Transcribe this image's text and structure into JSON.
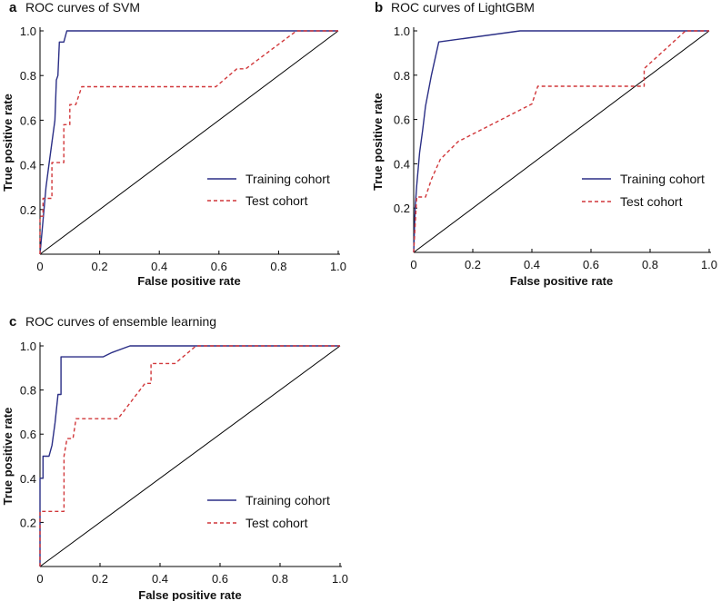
{
  "colors": {
    "training": "#2b2f86",
    "test": "#d1373a",
    "diagonal": "#000000",
    "axis": "#000000"
  },
  "chart_data": [
    {
      "type": "line",
      "panel": "a",
      "title": "ROC curves of SVM",
      "xlabel": "False positive rate",
      "ylabel": "True positive rate",
      "xlim": [
        0,
        1
      ],
      "ylim": [
        0,
        1
      ],
      "x_ticks": [
        "0",
        "0.2",
        "0.4",
        "0.6",
        "0.8",
        "1.0"
      ],
      "y_ticks": [
        "1.0",
        "0.8",
        "0.6",
        "0.4",
        "0.2"
      ],
      "legend_position": "bottom-right",
      "diagonal": true,
      "series": [
        {
          "name": "Training cohort",
          "style": "solid",
          "points": [
            [
              0,
              0
            ],
            [
              0.01,
              0.15
            ],
            [
              0.02,
              0.3
            ],
            [
              0.03,
              0.4
            ],
            [
              0.04,
              0.5
            ],
            [
              0.05,
              0.6
            ],
            [
              0.055,
              0.78
            ],
            [
              0.06,
              0.8
            ],
            [
              0.065,
              0.95
            ],
            [
              0.08,
              0.95
            ],
            [
              0.09,
              1.0
            ],
            [
              1.0,
              1.0
            ]
          ]
        },
        {
          "name": "Test cohort",
          "style": "dashed",
          "points": [
            [
              0,
              0
            ],
            [
              0,
              0.17
            ],
            [
              0.01,
              0.17
            ],
            [
              0.01,
              0.25
            ],
            [
              0.04,
              0.25
            ],
            [
              0.04,
              0.41
            ],
            [
              0.08,
              0.41
            ],
            [
              0.08,
              0.58
            ],
            [
              0.1,
              0.58
            ],
            [
              0.1,
              0.67
            ],
            [
              0.12,
              0.67
            ],
            [
              0.14,
              0.75
            ],
            [
              0.59,
              0.75
            ],
            [
              0.66,
              0.83
            ],
            [
              0.69,
              0.83
            ],
            [
              0.73,
              0.87
            ],
            [
              0.86,
              1.0
            ],
            [
              1.0,
              1.0
            ]
          ]
        }
      ]
    },
    {
      "type": "line",
      "panel": "b",
      "title": "ROC curves of LightGBM",
      "xlabel": "False positive rate",
      "ylabel": "True positive rate",
      "xlim": [
        0,
        1
      ],
      "ylim": [
        0,
        1
      ],
      "x_ticks": [
        "0",
        "0.2",
        "0.4",
        "0.6",
        "0.8",
        "1.0"
      ],
      "y_ticks": [
        "1.0",
        "0.8",
        "0.6",
        "0.4",
        "0.2"
      ],
      "legend_position": "bottom-right",
      "diagonal": true,
      "series": [
        {
          "name": "Training cohort",
          "style": "solid",
          "points": [
            [
              0,
              0
            ],
            [
              0.005,
              0.2
            ],
            [
              0.01,
              0.3
            ],
            [
              0.02,
              0.45
            ],
            [
              0.03,
              0.55
            ],
            [
              0.04,
              0.66
            ],
            [
              0.06,
              0.8
            ],
            [
              0.085,
              0.95
            ],
            [
              0.36,
              1.0
            ],
            [
              1.0,
              1.0
            ]
          ]
        },
        {
          "name": "Test cohort",
          "style": "dashed",
          "points": [
            [
              0,
              0
            ],
            [
              0.01,
              0.25
            ],
            [
              0.04,
              0.25
            ],
            [
              0.06,
              0.33
            ],
            [
              0.09,
              0.42
            ],
            [
              0.15,
              0.5
            ],
            [
              0.4,
              0.67
            ],
            [
              0.42,
              0.75
            ],
            [
              0.78,
              0.75
            ],
            [
              0.78,
              0.83
            ],
            [
              0.92,
              1.0
            ],
            [
              1.0,
              1.0
            ]
          ]
        }
      ]
    },
    {
      "type": "line",
      "panel": "c",
      "title": "ROC curves of ensemble learning",
      "xlabel": "False positive rate",
      "ylabel": "True positive rate",
      "xlim": [
        0,
        1
      ],
      "ylim": [
        0,
        1
      ],
      "x_ticks": [
        "0",
        "0.2",
        "0.4",
        "0.6",
        "0.8",
        "1.0"
      ],
      "y_ticks": [
        "1.0",
        "0.8",
        "0.6",
        "0.4",
        "0.2"
      ],
      "legend_position": "bottom-right",
      "diagonal": true,
      "series": [
        {
          "name": "Training cohort",
          "style": "solid",
          "points": [
            [
              0,
              0
            ],
            [
              0,
              0.4
            ],
            [
              0.01,
              0.4
            ],
            [
              0.01,
              0.5
            ],
            [
              0.03,
              0.5
            ],
            [
              0.04,
              0.55
            ],
            [
              0.05,
              0.65
            ],
            [
              0.06,
              0.78
            ],
            [
              0.07,
              0.78
            ],
            [
              0.07,
              0.95
            ],
            [
              0.21,
              0.95
            ],
            [
              0.24,
              0.97
            ],
            [
              0.3,
              1.0
            ],
            [
              1.0,
              1.0
            ]
          ]
        },
        {
          "name": "Test cohort",
          "style": "dashed",
          "points": [
            [
              0,
              0
            ],
            [
              0,
              0.25
            ],
            [
              0.08,
              0.25
            ],
            [
              0.08,
              0.5
            ],
            [
              0.09,
              0.58
            ],
            [
              0.11,
              0.58
            ],
            [
              0.12,
              0.67
            ],
            [
              0.26,
              0.67
            ],
            [
              0.35,
              0.83
            ],
            [
              0.37,
              0.83
            ],
            [
              0.37,
              0.92
            ],
            [
              0.45,
              0.92
            ],
            [
              0.52,
              1.0
            ],
            [
              1.0,
              1.0
            ]
          ]
        }
      ]
    }
  ]
}
